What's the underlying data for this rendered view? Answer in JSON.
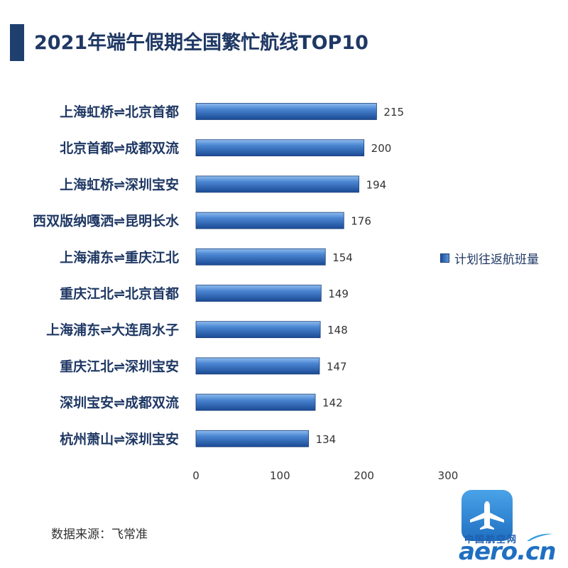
{
  "title": "2021年端午假期全国繁忙航线TOP10",
  "source": "数据来源：飞常准",
  "legend_label": "计划往返航班量",
  "logo": {
    "cn": "中国航空网",
    "en": "aero.cn"
  },
  "colors": {
    "title": "#1f3864",
    "bar_dark": "#1e4f9a",
    "bar_light": "#6aa2e0",
    "text": "#333333"
  },
  "chart_data": {
    "type": "bar",
    "orientation": "horizontal",
    "categories": [
      "上海虹桥⇌北京首都",
      "北京首都⇌成都双流",
      "上海虹桥⇌深圳宝安",
      "西双版纳嘎洒⇌昆明长水",
      "上海浦东⇌重庆江北",
      "重庆江北⇌北京首都",
      "上海浦东⇌大连周水子",
      "重庆江北⇌深圳宝安",
      "深圳宝安⇌成都双流",
      "杭州萧山⇌深圳宝安"
    ],
    "series": [
      {
        "name": "计划往返航班量",
        "values": [
          215,
          200,
          194,
          176,
          154,
          149,
          148,
          147,
          142,
          134
        ]
      }
    ],
    "xlim": [
      0,
      300
    ],
    "xticks": [
      0,
      100,
      200,
      300
    ],
    "grid": false,
    "legend_position": "right"
  }
}
